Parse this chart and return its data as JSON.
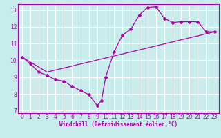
{
  "xlabel": "Windchill (Refroidissement éolien,°C)",
  "bg_color": "#c8ecec",
  "grid_color": "#ffffff",
  "line_color": "#aa00aa",
  "line1_x": [
    0,
    1,
    2,
    3,
    4,
    5,
    6,
    7,
    8,
    9,
    9.5,
    10,
    11,
    12,
    13,
    14,
    15,
    16,
    17,
    18,
    19,
    20,
    21,
    22,
    23
  ],
  "line1_y": [
    10.2,
    9.8,
    9.3,
    9.1,
    8.85,
    8.75,
    8.45,
    8.2,
    7.95,
    7.3,
    7.6,
    9.0,
    10.5,
    11.5,
    11.85,
    12.7,
    13.15,
    13.2,
    12.5,
    12.25,
    12.3,
    12.3,
    12.3,
    11.7,
    11.7
  ],
  "line2_x": [
    0,
    3,
    23
  ],
  "line2_y": [
    10.2,
    9.3,
    11.7
  ],
  "xlim": [
    -0.5,
    23.5
  ],
  "ylim": [
    6.85,
    13.35
  ],
  "xticks": [
    0,
    1,
    2,
    3,
    4,
    5,
    6,
    7,
    8,
    9,
    10,
    11,
    12,
    13,
    14,
    15,
    16,
    17,
    18,
    19,
    20,
    21,
    22,
    23
  ],
  "yticks": [
    7,
    8,
    9,
    10,
    11,
    12,
    13
  ],
  "tick_fontsize": 5.5,
  "xlabel_fontsize": 5.5
}
